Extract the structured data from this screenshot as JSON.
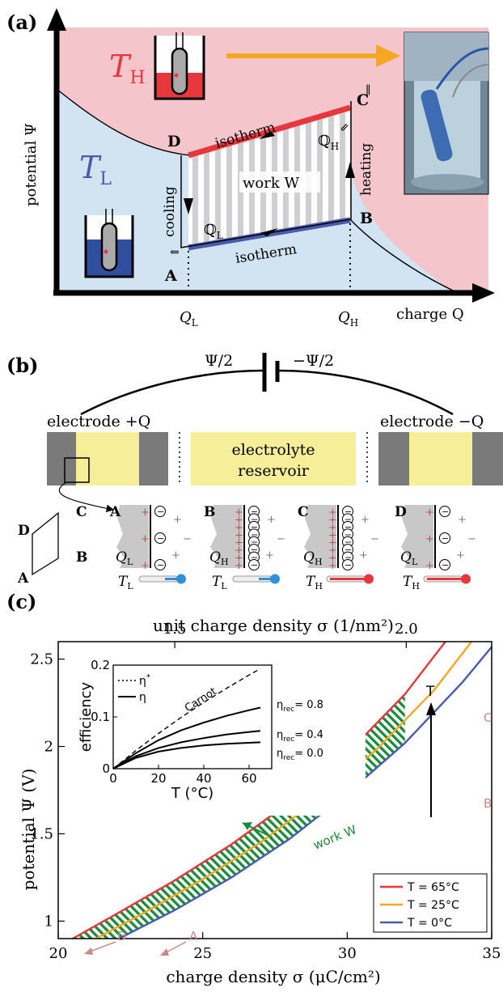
{
  "panel_a": {
    "label": "(a)",
    "y_axis_label": "potential Ψ",
    "x_axis_label": "charge Q",
    "th": "T",
    "th_sub": "H",
    "tl": "T",
    "tl_sub": "L",
    "corner_a": "A",
    "corner_b": "B",
    "corner_c": "C",
    "corner_d": "D",
    "isotherm_top": "isotherm",
    "isotherm_bottom": "isotherm",
    "cooling": "cooling",
    "heating": "heating",
    "work": "work W",
    "q_h_heat": "ℚ",
    "q_h_heat_sub": "H",
    "q_l_heat": "ℚ",
    "q_l_heat_sub": "L",
    "q_l_tick": "Q",
    "q_l_tick_sub": "L",
    "q_h_tick": "Q",
    "q_h_tick_sub": "H",
    "colors": {
      "hot": "#f4c6cb",
      "cold": "#d2e3f1",
      "hot_line": "#e8373c",
      "cold_line": "#4a5bab",
      "arrow": "#f5a623"
    }
  },
  "panel_b": {
    "label": "(b)",
    "battery_left": "Ψ/2",
    "battery_right": "−Ψ/2",
    "electrode_left": "electrode +Q",
    "electrode_right": "electrode −Q",
    "reservoir_1": "electrolyte",
    "reservoir_2": "reservoir",
    "mini_a": "A",
    "mini_b": "B",
    "mini_c": "C",
    "mini_d": "D",
    "states": [
      {
        "corner": "A",
        "charge": "Q",
        "charge_sub": "L",
        "temp": "T",
        "temp_sub": "L"
      },
      {
        "corner": "B",
        "charge": "Q",
        "charge_sub": "H",
        "temp": "T",
        "temp_sub": "L"
      },
      {
        "corner": "C",
        "charge": "Q",
        "charge_sub": "H",
        "temp": "T",
        "temp_sub": "H"
      },
      {
        "corner": "D",
        "charge": "Q",
        "charge_sub": "L",
        "temp": "T",
        "temp_sub": "H"
      }
    ]
  },
  "panel_c": {
    "label": "(c)",
    "top_axis_label": "unit charge density σ (1/nm²)",
    "x_axis_label": "charge density σ (μC/cm²)",
    "y_axis_label": "potential Ψ (V)",
    "work_label": "work W",
    "t_arrow_label": "T",
    "corner_a": "A",
    "corner_b": "B",
    "corner_c": "C",
    "corner_d": "D",
    "inset": {
      "y_label": "efficiency",
      "x_label": "T (°C)",
      "legend_star": "η",
      "legend_eta": "η",
      "carnot": "Carnot",
      "rec_labels": [
        "η",
        "η",
        "η"
      ],
      "rec_values": [
        "= 0.8",
        "= 0.4",
        "= 0.0"
      ],
      "rec_sub": "rec"
    }
  },
  "chart_data": [
    {
      "type": "line",
      "x_top_ticks": [
        "1.5",
        "2.0"
      ],
      "x_ticks": [
        "20",
        "25",
        "30",
        "35"
      ],
      "y_ticks": [
        "1",
        "1.5",
        "2",
        "2.5"
      ],
      "xlim": [
        20,
        35
      ],
      "ylim": [
        0.9,
        2.6
      ],
      "series": [
        {
          "name": "T = 65°C",
          "color": "#e8373c",
          "x": [
            20.5,
            22,
            24,
            26,
            28,
            30,
            32,
            33.4
          ],
          "y": [
            0.9,
            1.04,
            1.23,
            1.44,
            1.68,
            1.96,
            2.3,
            2.6
          ]
        },
        {
          "name": "T = 25°C",
          "color": "#f5a623",
          "x": [
            21.3,
            23,
            25,
            27,
            29,
            31,
            33,
            34.3
          ],
          "y": [
            0.9,
            1.05,
            1.24,
            1.45,
            1.7,
            1.98,
            2.32,
            2.6
          ]
        },
        {
          "name": "T = 0°C",
          "color": "#4a5bab",
          "x": [
            22.1,
            24,
            26,
            28,
            30,
            32,
            34,
            35
          ],
          "y": [
            0.9,
            1.06,
            1.25,
            1.47,
            1.73,
            2.02,
            2.37,
            2.57
          ]
        }
      ],
      "cycle": {
        "sigma_low": 20.5,
        "sigma_high": 32
      }
    },
    {
      "type": "line",
      "xlim": [
        0,
        70
      ],
      "ylim": [
        0,
        0.2
      ],
      "x_ticks": [
        "0",
        "20",
        "40",
        "60"
      ],
      "y_ticks": [
        "0",
        "0.1",
        "0.2"
      ],
      "series": [
        {
          "name": "Carnot",
          "x": [
            0,
            10,
            20,
            30,
            40,
            50,
            60,
            65
          ],
          "y": [
            0,
            0.035,
            0.068,
            0.099,
            0.128,
            0.155,
            0.181,
            0.193
          ]
        },
        {
          "name": "η rec = 0.8",
          "x": [
            0,
            10,
            20,
            30,
            40,
            50,
            60,
            65
          ],
          "y": [
            0,
            0.03,
            0.055,
            0.074,
            0.089,
            0.102,
            0.113,
            0.118
          ]
        },
        {
          "name": "η rec = 0.4",
          "x": [
            0,
            10,
            20,
            30,
            40,
            50,
            60,
            65
          ],
          "y": [
            0,
            0.024,
            0.04,
            0.051,
            0.059,
            0.066,
            0.071,
            0.073
          ]
        },
        {
          "name": "η rec = 0.0",
          "x": [
            0,
            10,
            20,
            30,
            40,
            50,
            60,
            65
          ],
          "y": [
            0,
            0.021,
            0.033,
            0.04,
            0.045,
            0.048,
            0.05,
            0.051
          ]
        }
      ]
    }
  ]
}
